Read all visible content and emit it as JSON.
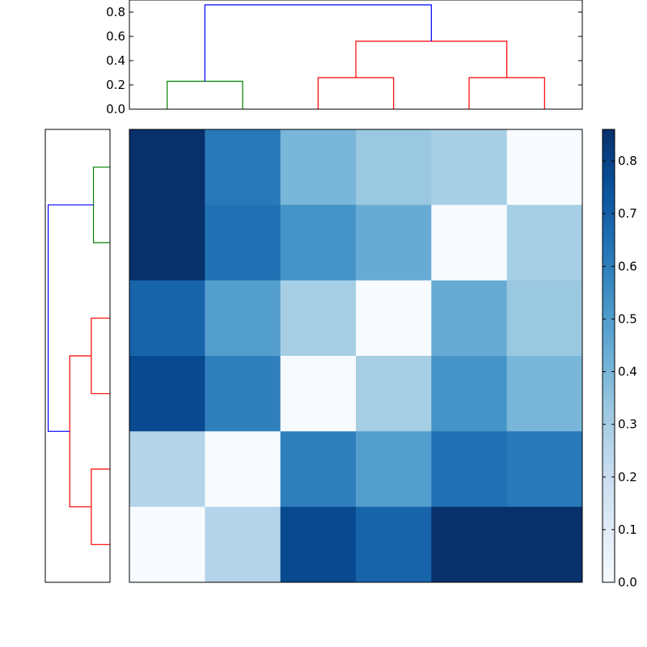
{
  "chart_data": [
    {
      "type": "dendrogram",
      "orientation": "top",
      "ylim": [
        0,
        0.9
      ],
      "yticks": [
        "0.0",
        "0.2",
        "0.4",
        "0.6",
        "0.8"
      ],
      "leaf_count": 6,
      "links": [
        {
          "left": 0,
          "right": 1,
          "left_height": 0,
          "right_height": 0,
          "height": 0.23,
          "color": "#008000"
        },
        {
          "left": 2,
          "right": 3,
          "left_height": 0,
          "right_height": 0,
          "height": 0.26,
          "color": "#ff0000"
        },
        {
          "left": 4,
          "right": 5,
          "left_height": 0,
          "right_height": 0,
          "height": 0.26,
          "color": "#ff0000"
        },
        {
          "left": 2.5,
          "right": 4.5,
          "left_height": 0.26,
          "right_height": 0.26,
          "height": 0.56,
          "color": "#ff0000"
        },
        {
          "left": 0.5,
          "right": 3.5,
          "left_height": 0.23,
          "right_height": 0.56,
          "height": 0.86,
          "color": "#0000ff"
        }
      ]
    },
    {
      "type": "dendrogram",
      "orientation": "left",
      "leaf_count": 6,
      "links": [
        {
          "left": 0,
          "right": 1,
          "left_height": 0,
          "right_height": 0,
          "height": 0.23,
          "color": "#008000"
        },
        {
          "left": 2,
          "right": 3,
          "left_height": 0,
          "right_height": 0,
          "height": 0.26,
          "color": "#ff0000"
        },
        {
          "left": 4,
          "right": 5,
          "left_height": 0,
          "right_height": 0,
          "height": 0.26,
          "color": "#ff0000"
        },
        {
          "left": 2.5,
          "right": 4.5,
          "left_height": 0.26,
          "right_height": 0.26,
          "height": 0.56,
          "color": "#ff0000"
        },
        {
          "left": 0.5,
          "right": 3.5,
          "left_height": 0.23,
          "right_height": 0.56,
          "height": 0.86,
          "color": "#0000ff"
        }
      ]
    },
    {
      "type": "heatmap",
      "colormap": "Blues",
      "vmin": 0,
      "vmax": 0.86,
      "values": [
        [
          0.86,
          0.62,
          0.4,
          0.33,
          0.3,
          0.0
        ],
        [
          0.86,
          0.65,
          0.53,
          0.44,
          0.0,
          0.3
        ],
        [
          0.69,
          0.49,
          0.3,
          0.0,
          0.44,
          0.33
        ],
        [
          0.78,
          0.6,
          0.0,
          0.3,
          0.53,
          0.4
        ],
        [
          0.26,
          0.0,
          0.6,
          0.49,
          0.65,
          0.62
        ],
        [
          0.0,
          0.26,
          0.78,
          0.69,
          0.86,
          0.86
        ]
      ],
      "colorbar": {
        "ticks": [
          "0.0",
          "0.1",
          "0.2",
          "0.3",
          "0.4",
          "0.5",
          "0.6",
          "0.7",
          "0.8"
        ]
      }
    }
  ]
}
